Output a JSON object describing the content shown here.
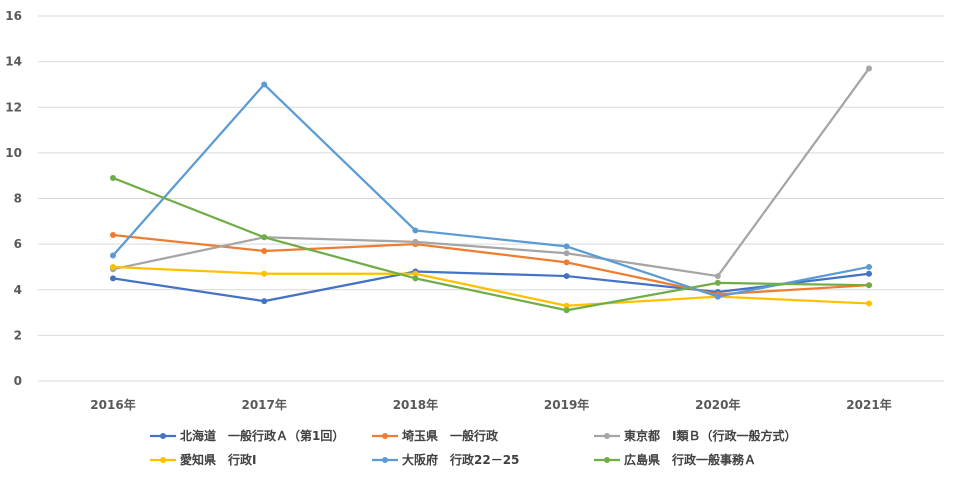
{
  "chart_data": {
    "type": "line",
    "title": "",
    "xlabel": "",
    "ylabel": "",
    "categories": [
      "2016年",
      "2017年",
      "2018年",
      "2019年",
      "2020年",
      "2021年"
    ],
    "ylim": [
      0,
      16
    ],
    "yticks": [
      "0",
      "2",
      "4",
      "6",
      "8",
      "10",
      "12",
      "14",
      "16"
    ],
    "grid": true,
    "legend_position": "bottom",
    "series": [
      {
        "name": "北海道　一般行政Ａ（第1回）",
        "color": "#4472C4",
        "values": [
          4.5,
          3.5,
          4.8,
          4.6,
          3.9,
          4.7
        ]
      },
      {
        "name": "埼玉県　一般行政",
        "color": "#ED7D31",
        "values": [
          6.4,
          5.7,
          6.0,
          5.2,
          3.8,
          4.2
        ]
      },
      {
        "name": "東京都　Ⅰ類Ｂ（行政一般方式）",
        "color": "#A5A5A5",
        "values": [
          4.9,
          6.3,
          6.1,
          5.6,
          4.6,
          13.7
        ]
      },
      {
        "name": "愛知県　行政Ⅰ",
        "color": "#FFC000",
        "values": [
          5.0,
          4.7,
          4.7,
          3.3,
          3.7,
          3.4
        ]
      },
      {
        "name": "大阪府　行政22－25",
        "color": "#5B9BD5",
        "values": [
          5.5,
          13.0,
          6.6,
          5.9,
          3.7,
          5.0
        ]
      },
      {
        "name": "広島県　行政一般事務Ａ",
        "color": "#70AD47",
        "values": [
          8.9,
          6.3,
          4.5,
          3.1,
          4.3,
          4.2
        ]
      }
    ]
  }
}
